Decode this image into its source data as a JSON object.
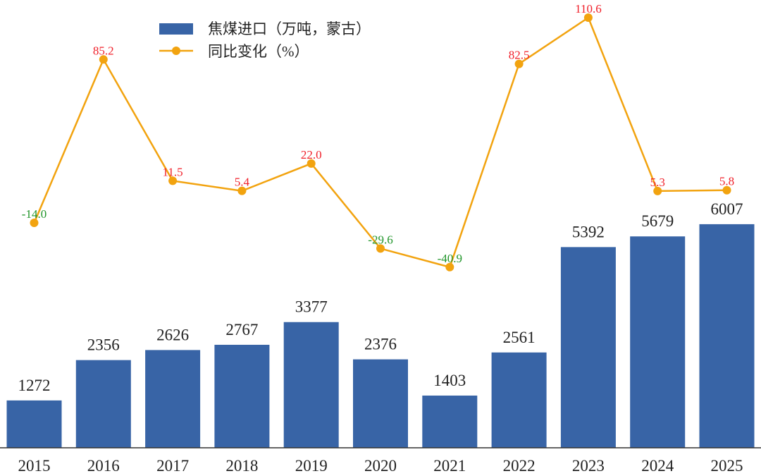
{
  "chart_data": {
    "type": "bar+line",
    "categories": [
      "2015",
      "2016",
      "2017",
      "2018",
      "2019",
      "2020",
      "2021",
      "2022",
      "2023",
      "2024",
      "2025"
    ],
    "series": [
      {
        "name": "焦煤进口（万吨，蒙古）",
        "type": "bar",
        "axis": "left",
        "values": [
          1272,
          2356,
          2626,
          2767,
          3377,
          2376,
          1403,
          2561,
          5392,
          5679,
          6007
        ]
      },
      {
        "name": "同比变化（%）",
        "type": "line",
        "axis": "right",
        "values": [
          -14.0,
          85.2,
          11.5,
          5.4,
          22.0,
          -29.6,
          -40.9,
          82.5,
          110.6,
          5.3,
          5.8
        ],
        "labels": [
          "-14.0",
          "85.2",
          "11.5",
          "5.4",
          "22.0",
          "-29.6",
          "-40.9",
          "82.5",
          "110.6",
          "5.3",
          "5.8"
        ]
      }
    ],
    "ylim_left": [
      0,
      12030
    ],
    "ylim_right": [
      -150.6,
      121.3
    ],
    "grid": false,
    "legend_placement": "top-center",
    "colors": {
      "bar": "#3864a6",
      "line": "#f2a30f",
      "positive_label": "#f0202a",
      "negative_label": "#21952a",
      "bar_label": "#222222"
    }
  }
}
